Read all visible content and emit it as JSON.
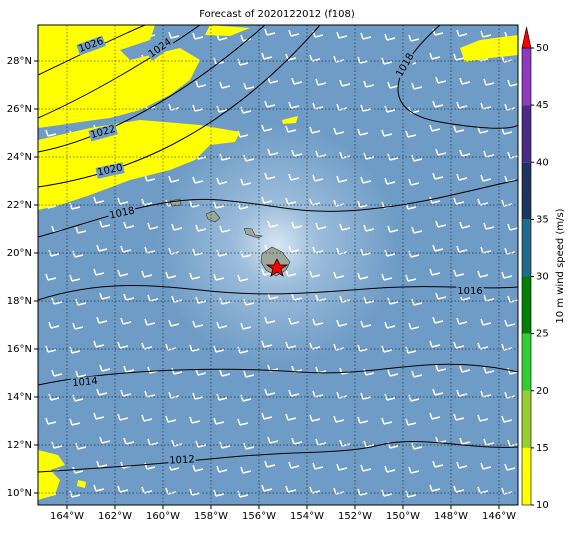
{
  "title": "Forecast of 2020122012 (f108)",
  "lon_ticks": [
    "164°W",
    "162°W",
    "160°W",
    "158°W",
    "156°W",
    "154°W",
    "152°W",
    "150°W",
    "148°W",
    "146°W"
  ],
  "lat_ticks": [
    "28°N",
    "26°N",
    "24°N",
    "22°N",
    "20°N",
    "18°N",
    "16°N",
    "14°N",
    "12°N",
    "10°N"
  ],
  "contours": [
    "1026",
    "1024",
    "1022",
    "1020",
    "1018",
    "1018",
    "1016",
    "1014",
    "1012"
  ],
  "colorbar": {
    "label": "10 m wind speed (m/s)",
    "lim": [
      10,
      50
    ],
    "ticks": [
      10,
      15,
      20,
      25,
      30,
      35,
      40,
      45,
      50
    ],
    "colors": [
      "#ffff00",
      "#9acd32",
      "#32cd32",
      "#008000",
      "#1e6b8c",
      "#1d3461",
      "#4b2a8a",
      "#8e3bbd"
    ],
    "extend_color": "#ff0000"
  }
}
